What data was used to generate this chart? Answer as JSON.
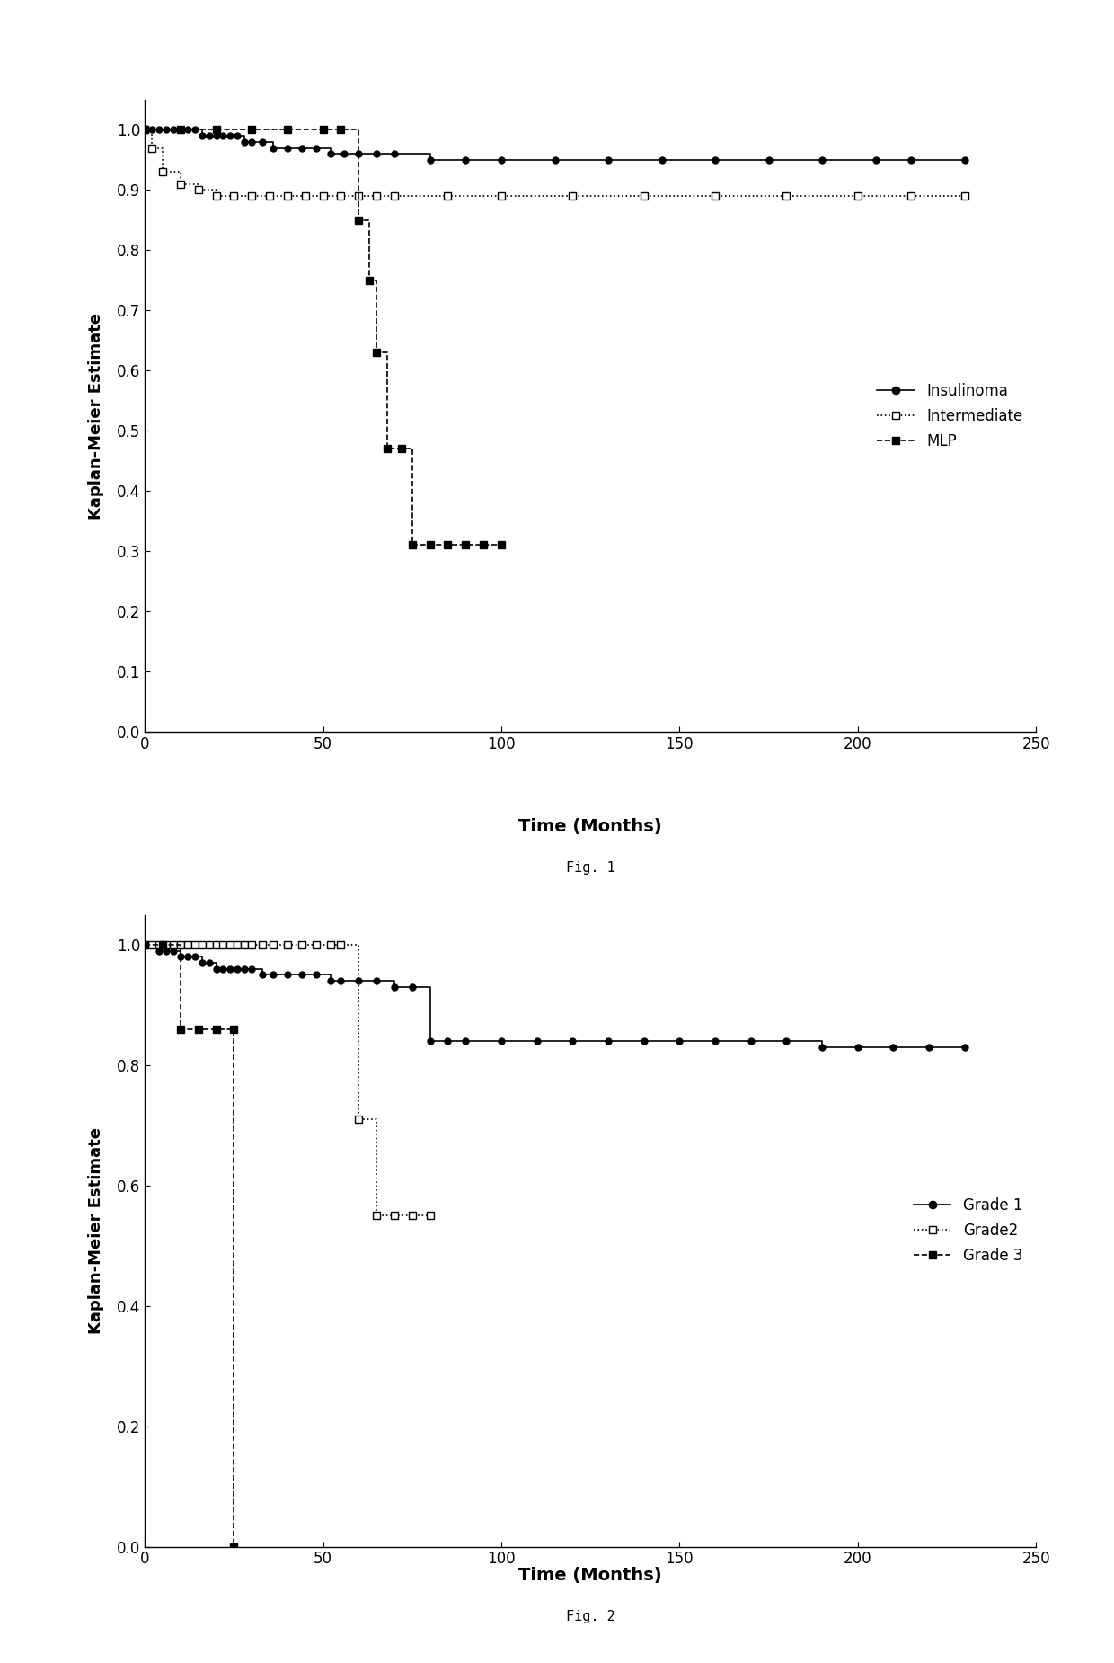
{
  "fig1": {
    "title": "Fig. 1",
    "xlabel": "Time (Months)",
    "ylabel": "Kaplan-Meier Estimate",
    "xlim": [
      0,
      250
    ],
    "ylim": [
      0,
      1.05
    ],
    "xticks": [
      0,
      50,
      100,
      150,
      200,
      250
    ],
    "yticks": [
      0,
      0.1,
      0.2,
      0.3,
      0.4,
      0.5,
      0.6,
      0.7,
      0.8,
      0.9,
      1
    ],
    "series": [
      {
        "label": "Insulinoma",
        "color": "#000000",
        "linestyle": "-",
        "marker": "o",
        "markerfacecolor": "#000000",
        "markersize": 5,
        "x": [
          0,
          2,
          4,
          6,
          8,
          10,
          12,
          14,
          16,
          18,
          20,
          22,
          24,
          26,
          28,
          30,
          33,
          36,
          40,
          44,
          48,
          52,
          56,
          60,
          65,
          70,
          80,
          90,
          100,
          115,
          130,
          145,
          160,
          175,
          190,
          205,
          215,
          230
        ],
        "y": [
          1.0,
          1.0,
          1.0,
          1.0,
          1.0,
          1.0,
          1.0,
          1.0,
          0.99,
          0.99,
          0.99,
          0.99,
          0.99,
          0.99,
          0.98,
          0.98,
          0.98,
          0.97,
          0.97,
          0.97,
          0.97,
          0.96,
          0.96,
          0.96,
          0.96,
          0.96,
          0.95,
          0.95,
          0.95,
          0.95,
          0.95,
          0.95,
          0.95,
          0.95,
          0.95,
          0.95,
          0.95,
          0.95
        ]
      },
      {
        "label": "Intermediate",
        "color": "#000000",
        "linestyle": ":",
        "marker": "s",
        "markerfacecolor": "white",
        "markersize": 6,
        "x": [
          0,
          2,
          5,
          10,
          15,
          20,
          25,
          30,
          35,
          40,
          45,
          50,
          55,
          60,
          65,
          70,
          85,
          100,
          120,
          140,
          160,
          180,
          200,
          215,
          230
        ],
        "y": [
          1.0,
          0.97,
          0.93,
          0.91,
          0.9,
          0.89,
          0.89,
          0.89,
          0.89,
          0.89,
          0.89,
          0.89,
          0.89,
          0.89,
          0.89,
          0.89,
          0.89,
          0.89,
          0.89,
          0.89,
          0.89,
          0.89,
          0.89,
          0.89,
          0.89
        ]
      },
      {
        "label": "MLP",
        "color": "#000000",
        "linestyle": "--",
        "marker": "s",
        "markerfacecolor": "#000000",
        "markersize": 6,
        "x": [
          0,
          10,
          20,
          30,
          40,
          50,
          55,
          60,
          63,
          65,
          68,
          72,
          75,
          80,
          85,
          90,
          95,
          100
        ],
        "y": [
          1.0,
          1.0,
          1.0,
          1.0,
          1.0,
          1.0,
          1.0,
          0.85,
          0.75,
          0.63,
          0.47,
          0.47,
          0.31,
          0.31,
          0.31,
          0.31,
          0.31,
          0.31
        ]
      }
    ],
    "legend_labels": [
      "Insulinoma",
      "Intermediate",
      "MLP"
    ],
    "legend_linestyles": [
      "-",
      ":",
      "--"
    ],
    "legend_markers": [
      "o",
      "s",
      "s"
    ],
    "legend_markerfacecolors": [
      "#000000",
      "white",
      "#000000"
    ]
  },
  "fig2": {
    "title": "Fig. 2",
    "xlabel": "Time (Months)",
    "ylabel": "Kaplan-Meier Estimate",
    "xlim": [
      0,
      250
    ],
    "ylim": [
      0,
      1.05
    ],
    "xticks": [
      0,
      50,
      100,
      150,
      200,
      250
    ],
    "yticks": [
      0,
      0.2,
      0.4,
      0.6,
      0.8,
      1
    ],
    "series": [
      {
        "label": "Grade 1",
        "color": "#000000",
        "linestyle": "-",
        "marker": "o",
        "markerfacecolor": "#000000",
        "markersize": 5,
        "x": [
          0,
          1,
          2,
          4,
          6,
          8,
          10,
          12,
          14,
          16,
          18,
          20,
          22,
          24,
          26,
          28,
          30,
          33,
          36,
          40,
          44,
          48,
          52,
          55,
          60,
          65,
          70,
          75,
          80,
          85,
          90,
          100,
          110,
          120,
          130,
          140,
          150,
          160,
          170,
          180,
          190,
          200,
          210,
          220,
          230
        ],
        "y": [
          1.0,
          1.0,
          1.0,
          0.99,
          0.99,
          0.99,
          0.98,
          0.98,
          0.98,
          0.97,
          0.97,
          0.96,
          0.96,
          0.96,
          0.96,
          0.96,
          0.96,
          0.95,
          0.95,
          0.95,
          0.95,
          0.95,
          0.94,
          0.94,
          0.94,
          0.94,
          0.93,
          0.93,
          0.84,
          0.84,
          0.84,
          0.84,
          0.84,
          0.84,
          0.84,
          0.84,
          0.84,
          0.84,
          0.84,
          0.84,
          0.83,
          0.83,
          0.83,
          0.83,
          0.83
        ]
      },
      {
        "label": "Grade2",
        "color": "#000000",
        "linestyle": ":",
        "marker": "s",
        "markerfacecolor": "white",
        "markersize": 6,
        "x": [
          0,
          2,
          4,
          6,
          8,
          10,
          12,
          14,
          16,
          18,
          20,
          22,
          24,
          26,
          28,
          30,
          33,
          36,
          40,
          44,
          48,
          52,
          55,
          60,
          65,
          70,
          75,
          80
        ],
        "y": [
          1.0,
          1.0,
          1.0,
          1.0,
          1.0,
          1.0,
          1.0,
          1.0,
          1.0,
          1.0,
          1.0,
          1.0,
          1.0,
          1.0,
          1.0,
          1.0,
          1.0,
          1.0,
          1.0,
          1.0,
          1.0,
          1.0,
          1.0,
          0.71,
          0.55,
          0.55,
          0.55,
          0.55
        ]
      },
      {
        "label": "Grade 3",
        "color": "#000000",
        "linestyle": "--",
        "marker": "s",
        "markerfacecolor": "#000000",
        "markersize": 6,
        "x": [
          0,
          5,
          10,
          15,
          20,
          25,
          25
        ],
        "y": [
          1.0,
          1.0,
          0.86,
          0.86,
          0.86,
          0.86,
          0.0
        ]
      }
    ],
    "legend_labels": [
      "Grade 1",
      "Grade2",
      "Grade 3"
    ],
    "legend_linestyles": [
      "-",
      ":",
      "--"
    ],
    "legend_markers": [
      "o",
      "s",
      "s"
    ],
    "legend_markerfacecolors": [
      "#000000",
      "white",
      "#000000"
    ]
  }
}
